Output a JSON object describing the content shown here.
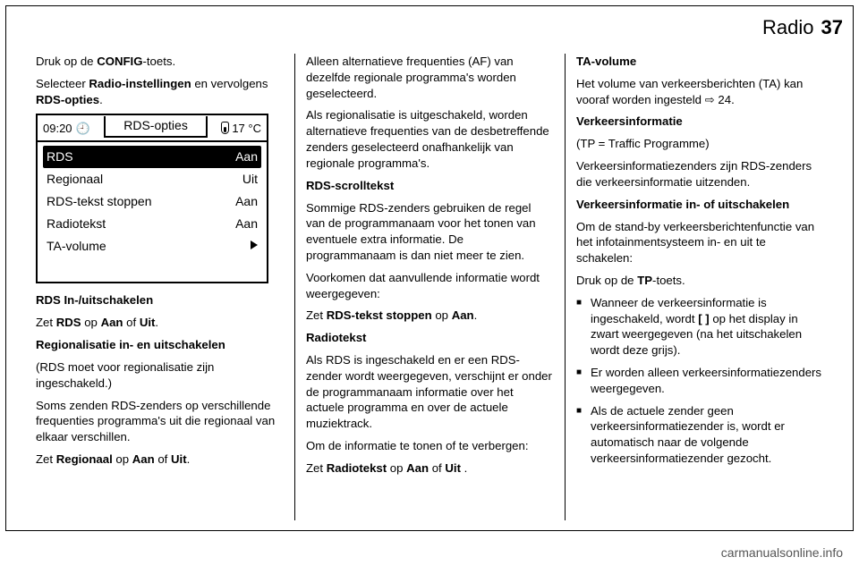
{
  "header": {
    "section": "Radio",
    "page_number": "37"
  },
  "col1": {
    "p1a": "Druk op de ",
    "p1b": "CONFIG",
    "p1c": "-toets.",
    "p2a": "Selecteer ",
    "p2b": "Radio-instellingen",
    "p2c": " en vervolgens ",
    "p2d": "RDS-opties",
    "p2e": ".",
    "p3_heading": "RDS In-/uitschakelen",
    "p3a": "Zet ",
    "p3b": "RDS",
    "p3c": " op ",
    "p3d": "Aan",
    "p3e": " of ",
    "p3f": "Uit",
    "p3g": ".",
    "p4_heading": "Regionalisatie in- en uitschakelen",
    "p4_note": "(RDS moet voor regionalisatie zijn ingeschakeld.)",
    "p5": "Soms zenden RDS-zenders op verschillende frequenties programma's uit die regionaal van elkaar verschillen.",
    "p6a": "Zet ",
    "p6b": "Regionaal",
    "p6c": " op ",
    "p6d": "Aan",
    "p6e": " of ",
    "p6f": "Uit",
    "p6g": "."
  },
  "device": {
    "time": "09:20",
    "time_icon": "🕘",
    "title": "RDS-opties",
    "temp": "17 °C",
    "rows": [
      {
        "label": "RDS",
        "value": "Aan",
        "selected": true
      },
      {
        "label": "Regionaal",
        "value": "Uit",
        "selected": false
      },
      {
        "label": "RDS-tekst stoppen",
        "value": "Aan",
        "selected": false
      },
      {
        "label": "Radiotekst",
        "value": "Aan",
        "selected": false
      },
      {
        "label": "TA-volume",
        "value": "",
        "selected": false,
        "arrow": true
      }
    ]
  },
  "col2": {
    "p1": "Alleen alternatieve frequenties (AF) van dezelfde regionale programma's worden geselecteerd.",
    "p2": "Als regionalisatie is uitgeschakeld, worden alternatieve frequenties van de desbetreffende zenders geselecteerd onafhankelijk van regionale programma's.",
    "p3_heading": "RDS-scrolltekst",
    "p3": "Sommige RDS-zenders gebruiken de regel van de programmanaam voor het tonen van eventuele extra informatie. De programmanaam is dan niet meer te zien.",
    "p4": "Voorkomen dat aanvullende informatie wordt weergegeven:",
    "p5a": "Zet ",
    "p5b": "RDS-tekst stoppen",
    "p5c": " op ",
    "p5d": "Aan",
    "p5e": ".",
    "p6_heading": "Radiotekst",
    "p6": "Als RDS is ingeschakeld en er een RDS-zender wordt weergegeven, verschijnt er onder de programmanaam informatie over het actuele programma en over de actuele muziektrack.",
    "p7": "Om de informatie te tonen of te verbergen:",
    "p8a": "Zet ",
    "p8b": "Radiotekst",
    "p8c": " op ",
    "p8d": "Aan",
    "p8e": " of ",
    "p8f": "Uit",
    "p8g": " ."
  },
  "col3": {
    "p1_heading": "TA-volume",
    "p1a": "Het volume van verkeersberichten (TA) kan vooraf worden ingesteld ",
    "p1b": "⇨ 24.",
    "p2_heading": "Verkeersinformatie",
    "p2_sub": "(TP = Traffic Programme)",
    "p3": "Verkeersinformatiezenders zijn RDS-zenders die verkeersinformatie uitzenden.",
    "p4_heading": "Verkeersinformatie in- of uitschakelen",
    "p4": "Om de stand-by verkeersberichtenfunctie van het infotainmentsysteem in- en uit te schakelen:",
    "p5a": "Druk op de ",
    "p5b": "TP",
    "p5c": "-toets.",
    "li1a": "Wanneer de verkeersinformatie is ingeschakeld, wordt ",
    "li1b": "[ ]",
    "li1c": " op het display in zwart weergegeven (na het uitschakelen wordt deze grijs).",
    "li2": "Er worden alleen verkeersinformatiezenders weergegeven.",
    "li3": "Als de actuele zender geen verkeersinformatiezender is, wordt er automatisch naar de volgende verkeersinformatiezender gezocht."
  },
  "footer": {
    "url": "carmanualsonline.info"
  }
}
